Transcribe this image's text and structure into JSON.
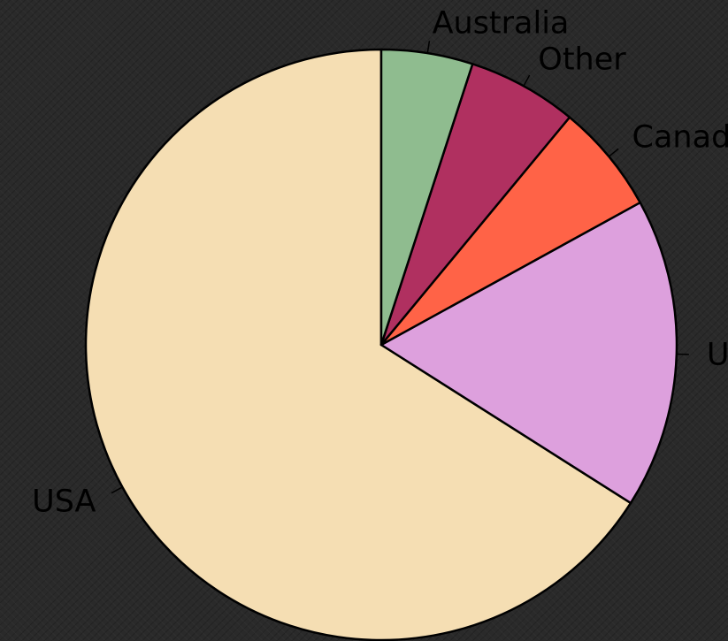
{
  "chart_data": {
    "type": "pie",
    "title": "",
    "start_angle_deg": 90,
    "direction": "counterclockwise",
    "slices": [
      {
        "label": "USA",
        "value": 66,
        "color": "#F5DEB3"
      },
      {
        "label": "UK",
        "value": 17,
        "color": "#DDA0DD"
      },
      {
        "label": "Canada",
        "value": 6,
        "color": "#FF6347"
      },
      {
        "label": "Other",
        "value": 6,
        "color": "#B03060"
      },
      {
        "label": "Australia",
        "value": 5,
        "color": "#8FBC8F"
      }
    ]
  }
}
